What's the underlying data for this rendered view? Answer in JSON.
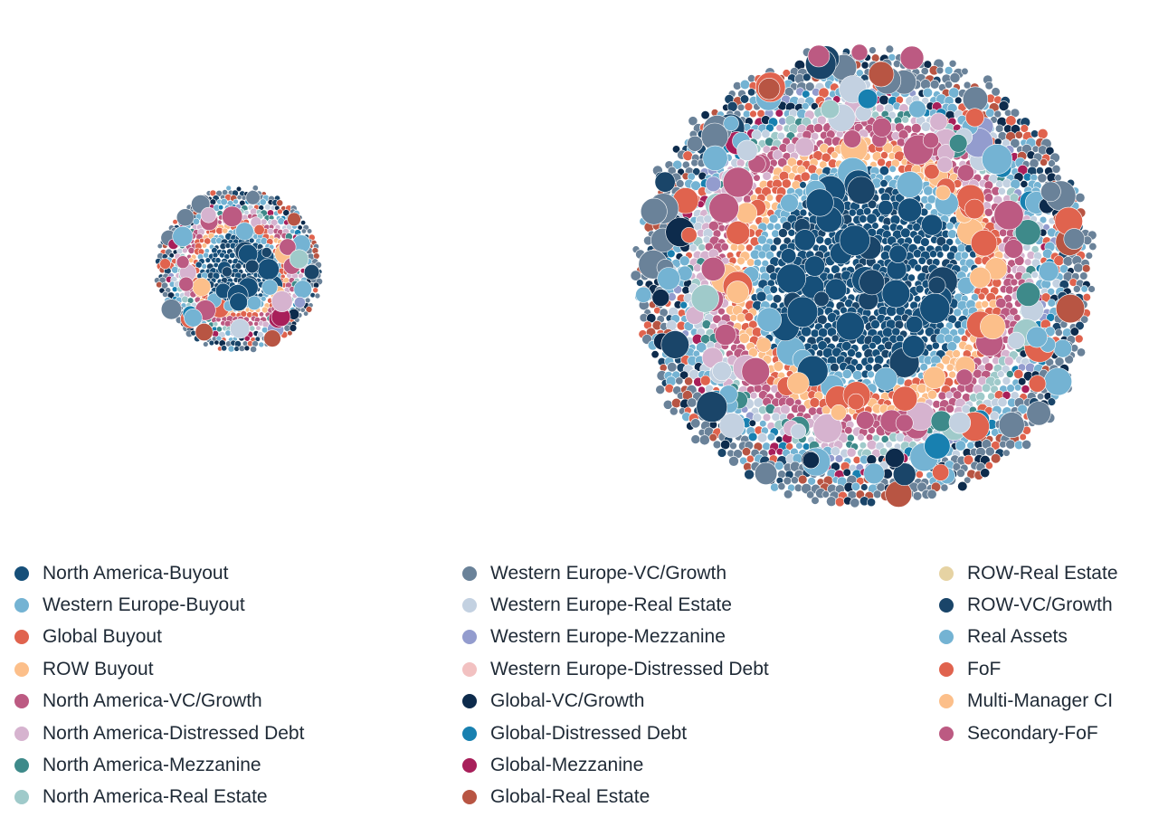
{
  "chart_data": {
    "type": "packed-bubble",
    "title": "",
    "clusters": 2,
    "legend_position": "bottom",
    "series": [
      {
        "name": "North America-Buyout",
        "color": "#164f79"
      },
      {
        "name": "Western Europe-Buyout",
        "color": "#74b3d3"
      },
      {
        "name": "Global Buyout",
        "color": "#e0634e"
      },
      {
        "name": "ROW Buyout",
        "color": "#fcbf8a"
      },
      {
        "name": "North America-VC/Growth",
        "color": "#bc5a82"
      },
      {
        "name": "North America-Distressed Debt",
        "color": "#d6b3cf"
      },
      {
        "name": "North America-Mezzanine",
        "color": "#3e8a8a"
      },
      {
        "name": "North America-Real Estate",
        "color": "#9fcaca"
      },
      {
        "name": "Western Europe-VC/Growth",
        "color": "#6a8299"
      },
      {
        "name": "Western Europe-Real Estate",
        "color": "#c3d1e1"
      },
      {
        "name": "Western Europe-Mezzanine",
        "color": "#939cce"
      },
      {
        "name": "Western Europe-Distressed Debt",
        "color": "#f2c1c1"
      },
      {
        "name": "Global-VC/Growth",
        "color": "#0d2b4c"
      },
      {
        "name": "Global-Distressed Debt",
        "color": "#1880b0"
      },
      {
        "name": "Global-Mezzanine",
        "color": "#a81f5a"
      },
      {
        "name": "Global-Real Estate",
        "color": "#b85543"
      },
      {
        "name": "ROW-Real Estate",
        "color": "#e6d3a3"
      },
      {
        "name": "ROW-VC/Growth",
        "color": "#1a4569"
      },
      {
        "name": "Real Assets",
        "color": "#74b3d3"
      },
      {
        "name": "FoF",
        "color": "#e0634e"
      },
      {
        "name": "Multi-Manager CI",
        "color": "#fcbf8a"
      },
      {
        "name": "Secondary-FoF",
        "color": "#bc5a82"
      }
    ]
  }
}
